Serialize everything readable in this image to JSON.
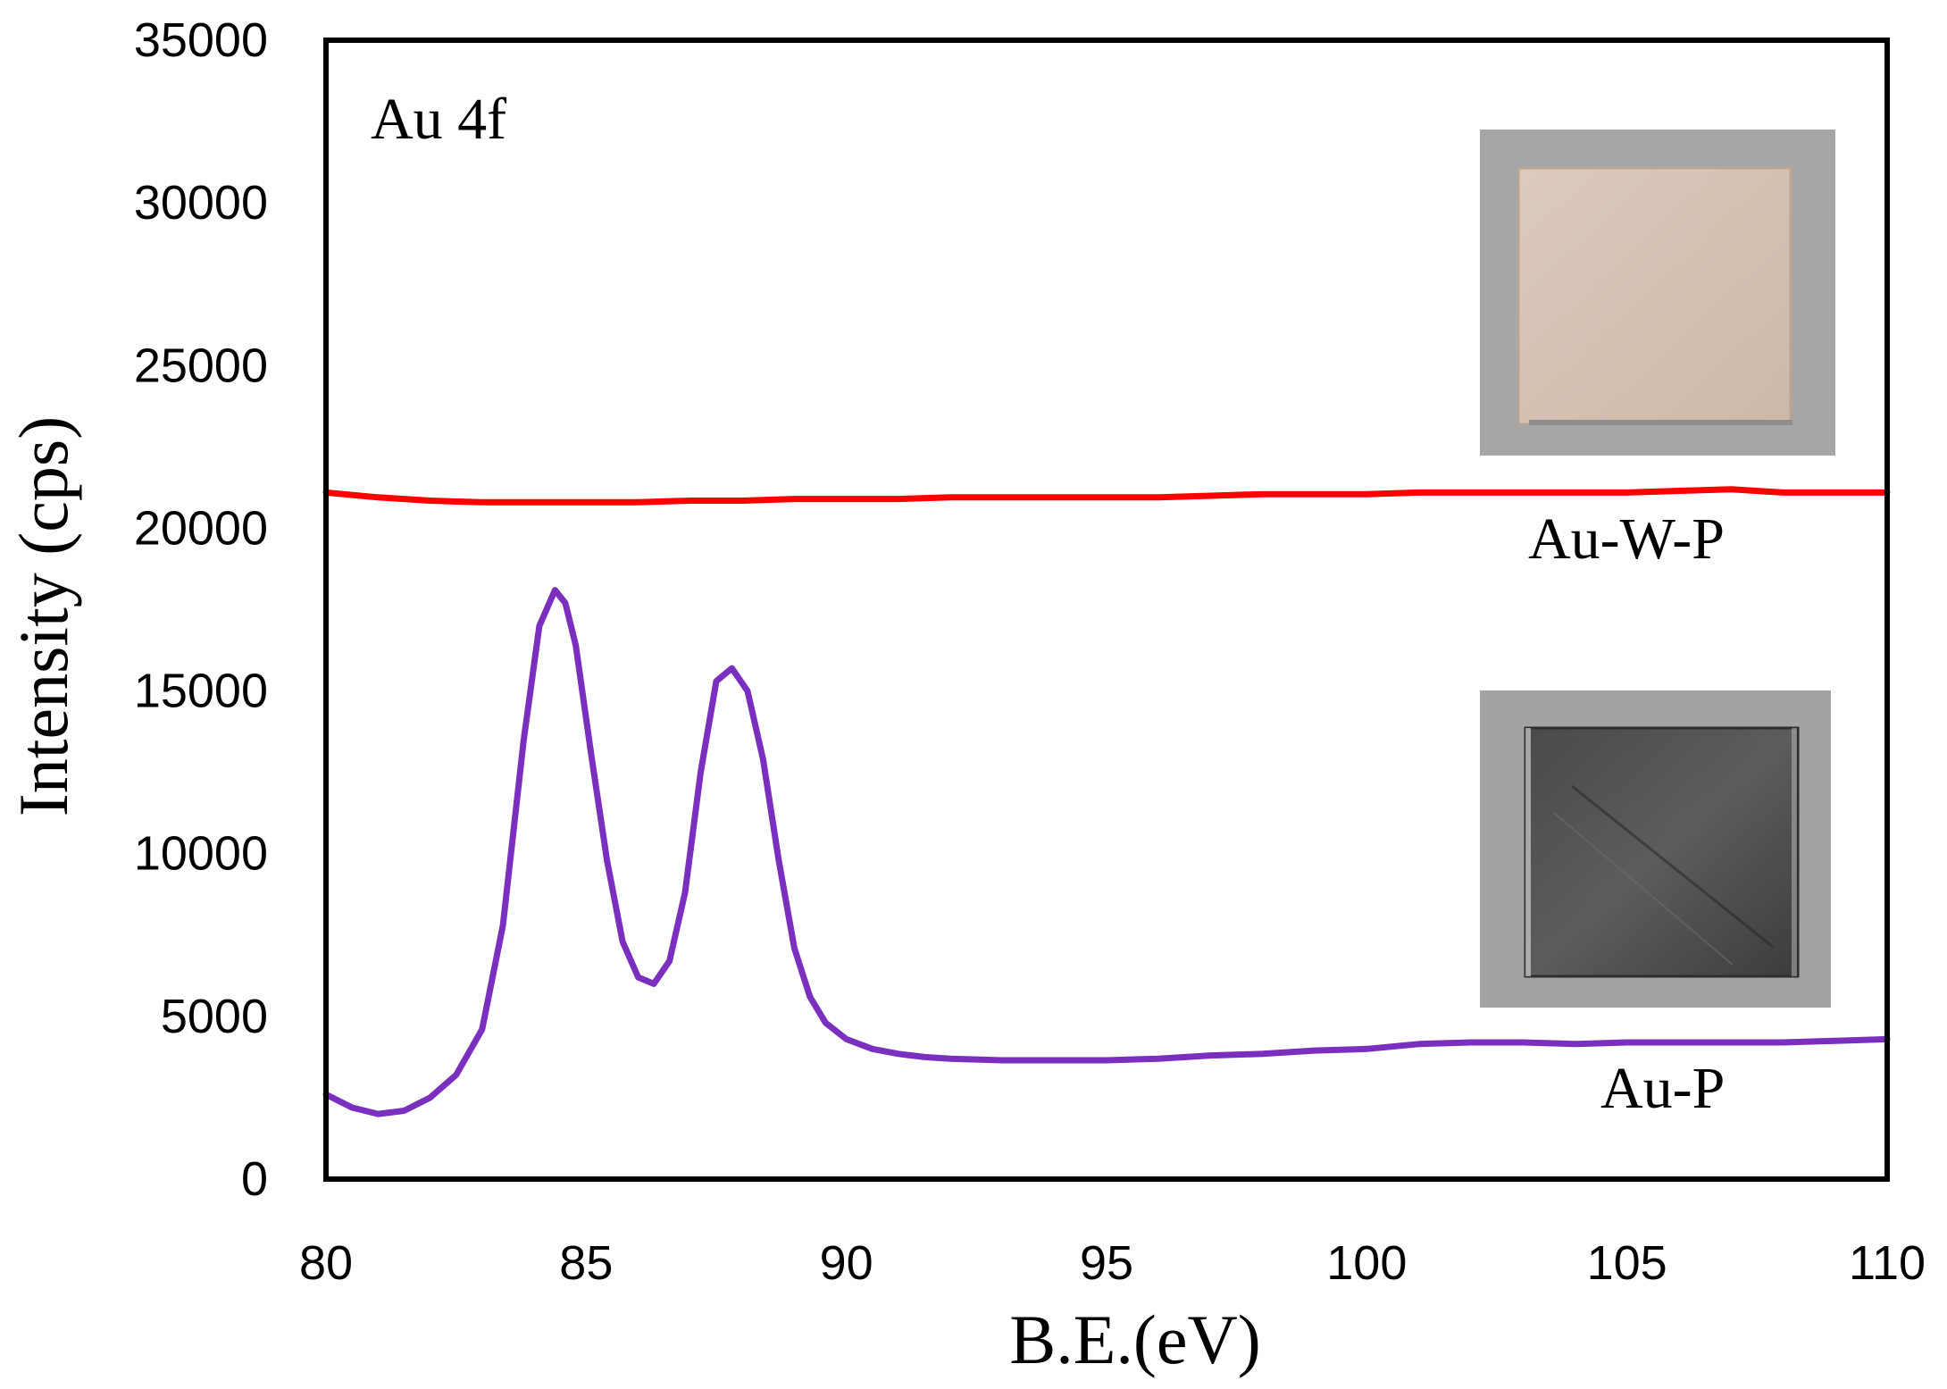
{
  "chart_data": {
    "type": "line",
    "title": "",
    "xlabel": "B.E.(eV)",
    "ylabel": "Intensity (cps)",
    "xlim": [
      80,
      110
    ],
    "ylim": [
      0,
      35000
    ],
    "x_ticks": [
      80,
      85,
      90,
      95,
      100,
      105,
      110
    ],
    "y_ticks": [
      0,
      5000,
      10000,
      15000,
      20000,
      25000,
      30000,
      35000
    ],
    "grid": false,
    "legend": "none",
    "annotations": {
      "panel_label": "Au 4f",
      "series_label_top": "Au-W-P",
      "series_label_bottom": "Au-P"
    },
    "inset_images": [
      {
        "sample": "Au-W-P",
        "appearance": "light beige square sample on grey background"
      },
      {
        "sample": "Au-P",
        "appearance": "dark grey metallic square sample on grey background"
      }
    ],
    "series": [
      {
        "name": "Au-W-P",
        "color": "#ff0000",
        "x": [
          80,
          81,
          82,
          83,
          84,
          85,
          86,
          87,
          88,
          89,
          90,
          91,
          92,
          93,
          94,
          95,
          96,
          97,
          98,
          99,
          100,
          101,
          102,
          103,
          104,
          105,
          106,
          107,
          108,
          109,
          110
        ],
        "y": [
          21100,
          20950,
          20850,
          20800,
          20800,
          20800,
          20800,
          20850,
          20850,
          20900,
          20900,
          20900,
          20950,
          20950,
          20950,
          20950,
          20950,
          21000,
          21050,
          21050,
          21050,
          21100,
          21100,
          21100,
          21100,
          21100,
          21150,
          21200,
          21100,
          21100,
          21100
        ]
      },
      {
        "name": "Au-P",
        "color": "#7b2fbf",
        "x": [
          80,
          80.5,
          81,
          81.5,
          82,
          82.5,
          83,
          83.4,
          83.8,
          84.1,
          84.4,
          84.6,
          84.8,
          85.1,
          85.4,
          85.7,
          86,
          86.3,
          86.6,
          86.9,
          87.2,
          87.5,
          87.8,
          88.1,
          88.4,
          88.7,
          89,
          89.3,
          89.6,
          90,
          90.5,
          91,
          91.5,
          92,
          93,
          94,
          95,
          96,
          97,
          98,
          99,
          100,
          101,
          102,
          103,
          104,
          105,
          106,
          107,
          108,
          109,
          110
        ],
        "y": [
          2600,
          2200,
          2000,
          2100,
          2500,
          3200,
          4600,
          7800,
          13500,
          17000,
          18100,
          17700,
          16400,
          13000,
          9800,
          7300,
          6200,
          6000,
          6700,
          8800,
          12500,
          15300,
          15700,
          15000,
          12900,
          9800,
          7100,
          5600,
          4800,
          4300,
          4000,
          3850,
          3750,
          3700,
          3650,
          3650,
          3650,
          3700,
          3800,
          3850,
          3950,
          4000,
          4150,
          4200,
          4200,
          4150,
          4200,
          4200,
          4200,
          4200,
          4250,
          4300
        ]
      }
    ]
  }
}
